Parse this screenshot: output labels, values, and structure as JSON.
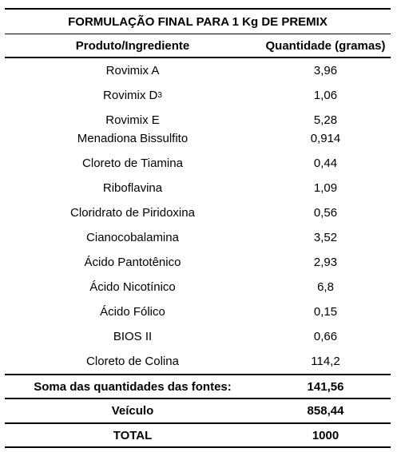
{
  "title": "FORMULAÇÃO FINAL PARA 1 Kg DE PREMIX",
  "headers": {
    "product": "Produto/Ingrediente",
    "quantity": "Quantidade (gramas)"
  },
  "rows": [
    {
      "name": "Rovimix A",
      "value": "3,96"
    },
    {
      "name": "Rovimix D",
      "sub": "3",
      "value": "1,06"
    },
    {
      "name": "Rovimix E",
      "value": "5,28"
    },
    {
      "name": "Menadiona Bissulfito",
      "value": "0,914"
    },
    {
      "name": "Cloreto de Tiamina",
      "value": "0,44"
    },
    {
      "name": "Riboflavina",
      "value": "1,09"
    },
    {
      "name": "Cloridrato de Piridoxina",
      "value": "0,56"
    },
    {
      "name": "Cianocobalamina",
      "value": "3,52"
    },
    {
      "name": "Ácido Pantotênico",
      "value": "2,93"
    },
    {
      "name": "Ácido Nicotínico",
      "value": "6,8"
    },
    {
      "name": "Ácido Fólico",
      "value": "0,15"
    },
    {
      "name": "BIOS II",
      "value": "0,66"
    },
    {
      "name": "Cloreto de Colina",
      "value": "114,2"
    }
  ],
  "sum": {
    "label": "Soma das quantidades das fontes:",
    "value": "141,56"
  },
  "vehicle": {
    "label": "Veículo",
    "value": "858,44"
  },
  "total": {
    "label": "TOTAL",
    "value": "1000"
  }
}
